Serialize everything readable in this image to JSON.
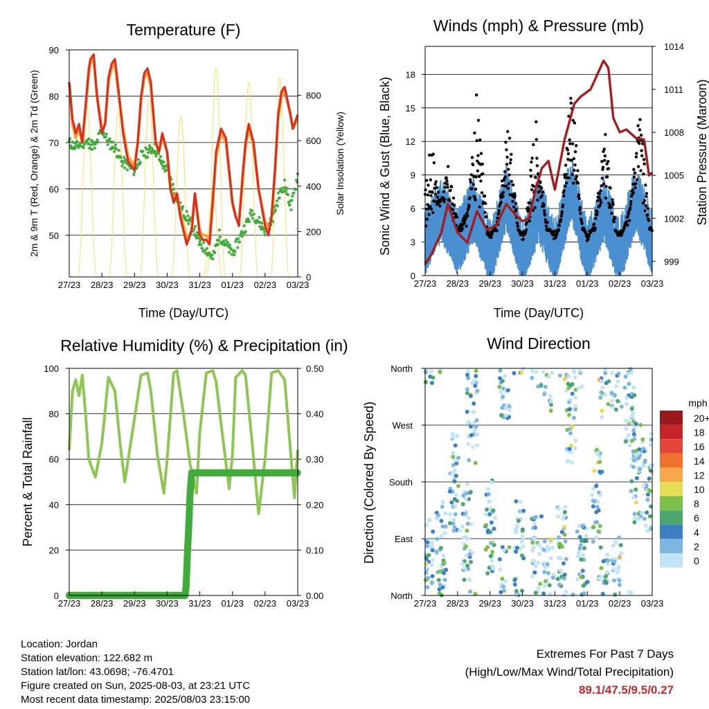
{
  "chart_data": [
    {
      "type": "line",
      "title": "Temperature (F)",
      "xlabel": "Time (Day/UTC)",
      "ylabel": "2m & 9m T (Red, Orange) & 2m Td (Green)",
      "y2label": "Solar Insolation (Yellow)",
      "x_ticks": [
        "27/23",
        "28/23",
        "29/23",
        "30/23",
        "31/23",
        "01/23",
        "02/23",
        "03/23"
      ],
      "ylim": [
        41,
        90
      ],
      "y_ticks": [
        50,
        60,
        70,
        80,
        90
      ],
      "y2lim": [
        0,
        1000
      ],
      "y2_ticks": [
        0,
        200,
        400,
        600,
        800
      ],
      "grid": true,
      "series": [
        {
          "name": "2m T",
          "color": "#d7301f",
          "x": [
            0,
            0.1,
            0.2,
            0.3,
            0.4,
            0.5,
            0.6,
            0.65,
            0.75,
            0.85,
            1,
            1.1,
            1.2,
            1.3,
            1.4,
            1.5,
            1.65,
            1.8,
            1.9,
            2,
            2.1,
            2.2,
            2.3,
            2.4,
            2.5,
            2.65,
            2.75,
            2.85,
            3,
            3.1,
            3.2,
            3.3,
            3.4,
            3.6,
            3.75,
            3.85,
            4,
            4.1,
            4.2,
            4.3,
            4.4,
            4.5,
            4.65,
            4.8,
            5,
            5.1,
            5.2,
            5.3,
            5.4,
            5.5,
            5.65,
            5.8,
            6,
            6.1,
            6.2,
            6.3,
            6.4,
            6.5,
            6.6,
            6.75,
            6.85,
            7
          ],
          "values": [
            83,
            75,
            72,
            74,
            70,
            78,
            86,
            88,
            89,
            80,
            72,
            74,
            84,
            87,
            88,
            82,
            72,
            66,
            65,
            64,
            70,
            80,
            85,
            86,
            83,
            70,
            68,
            72,
            68,
            60,
            57,
            59,
            54,
            48,
            51,
            59,
            50,
            49,
            49,
            48,
            58,
            68,
            73,
            71,
            57,
            54,
            52,
            62,
            70,
            74,
            70,
            60,
            52,
            50,
            54,
            64,
            76,
            81,
            82,
            77,
            73,
            76
          ]
        },
        {
          "name": "9m T",
          "color": "#f6a33b",
          "x": [
            0,
            0.1,
            0.2,
            0.3,
            0.4,
            0.5,
            0.6,
            0.65,
            0.75,
            0.85,
            1,
            1.1,
            1.2,
            1.3,
            1.4,
            1.5,
            1.65,
            1.8,
            1.9,
            2,
            2.1,
            2.2,
            2.3,
            2.4,
            2.5,
            2.65,
            2.75,
            2.85,
            3,
            3.1,
            3.2,
            3.3,
            3.4,
            3.6,
            3.75,
            3.85,
            4,
            4.1,
            4.2,
            4.3,
            4.4,
            4.5,
            4.65,
            4.8,
            5,
            5.1,
            5.2,
            5.3,
            5.4,
            5.5,
            5.65,
            5.8,
            6,
            6.1,
            6.2,
            6.3,
            6.4,
            6.5,
            6.6,
            6.75,
            6.85,
            7
          ],
          "values": [
            83,
            74,
            71,
            73,
            70,
            77,
            85,
            87,
            88,
            80,
            73,
            74,
            83,
            86,
            87,
            81,
            73,
            67,
            66,
            65,
            70,
            79,
            84,
            85,
            82,
            70,
            68,
            71,
            68,
            60,
            58,
            59,
            55,
            49,
            51,
            59,
            51,
            50,
            50,
            49,
            57,
            67,
            72,
            70,
            57,
            54,
            53,
            61,
            69,
            73,
            69,
            60,
            53,
            51,
            54,
            63,
            75,
            80,
            81,
            77,
            73,
            75
          ]
        },
        {
          "name": "2m Td",
          "color": "#41ab3c",
          "x": [
            0,
            0.2,
            0.4,
            0.6,
            0.8,
            1,
            1.2,
            1.4,
            1.6,
            1.8,
            2,
            2.2,
            2.4,
            2.6,
            2.8,
            3,
            3.2,
            3.4,
            3.6,
            3.8,
            4,
            4.2,
            4.4,
            4.6,
            4.8,
            5,
            5.2,
            5.4,
            5.6,
            5.8,
            6,
            6.2,
            6.4,
            6.6,
            6.8,
            7
          ],
          "values": [
            70,
            69,
            70,
            70,
            69,
            73,
            70,
            69,
            66,
            65,
            64,
            67,
            68,
            69,
            66,
            64,
            60,
            56,
            54,
            52,
            48,
            47,
            45,
            50,
            48,
            46,
            49,
            52,
            55,
            53,
            51,
            53,
            58,
            61,
            56,
            63
          ]
        },
        {
          "name": "Solar Insolation",
          "color": "#f5e06a",
          "axis": "y2",
          "peaks_x": [
            0.55,
            1.5,
            2.45,
            3.42,
            4.4,
            4.5,
            5.5,
            6.45
          ],
          "peaks": [
            750,
            730,
            780,
            710,
            380,
            920,
            860,
            880
          ]
        }
      ]
    },
    {
      "type": "scatter",
      "title": "Winds (mph) & Pressure (mb)",
      "xlabel": "Time (Day/UTC)",
      "ylabel": "Sonic Wind & Gust (Blue, Black)",
      "y2label": "Station Pressure (Maroon)",
      "x_ticks": [
        "27/23",
        "28/23",
        "29/23",
        "30/23",
        "31/23",
        "01/23",
        "02/23",
        "03/23"
      ],
      "ylim": [
        0,
        20.5
      ],
      "y_ticks": [
        0,
        3,
        6,
        9,
        12,
        15,
        18
      ],
      "y2lim": [
        998,
        1014
      ],
      "y2_ticks": [
        999,
        1002,
        1005,
        1008,
        1011,
        1014
      ],
      "grid": true,
      "series": [
        {
          "name": "Sonic Wind",
          "color": "#4a90d0",
          "x": [
            0,
            0.5,
            1,
            1.5,
            2,
            2.5,
            3,
            3.5,
            4,
            4.5,
            5,
            5.5,
            6,
            6.5,
            7
          ],
          "values": [
            3,
            6,
            3,
            6,
            2,
            7,
            2,
            6,
            2,
            8,
            2,
            6,
            2,
            7,
            3
          ]
        },
        {
          "name": "Gust",
          "color": "#000000",
          "peaks_x": [
            0.2,
            0.7,
            1.6,
            2.55,
            3.4,
            4.5,
            5.55,
            6.6
          ],
          "peaks": [
            12,
            9,
            16,
            13,
            14,
            18,
            12,
            15
          ]
        },
        {
          "name": "Station Pressure",
          "color": "#a11d21",
          "axis": "y2",
          "x": [
            0,
            0.2,
            0.5,
            0.7,
            1,
            1.3,
            1.6,
            1.9,
            2.2,
            2.5,
            2.8,
            3,
            3.2,
            3.4,
            3.6,
            3.8,
            4,
            4.3,
            4.6,
            4.8,
            5.1,
            5.3,
            5.5,
            5.65,
            5.8,
            6,
            6.2,
            6.5,
            6.75,
            6.9,
            7
          ],
          "values": [
            998.8,
            999.5,
            1001,
            1003,
            1001,
            1000.3,
            1002.5,
            1001.2,
            1001.5,
            1003,
            1002.2,
            1001.8,
            1002,
            1004,
            1005.5,
            1006,
            1004,
            1007.5,
            1010,
            1010.5,
            1011,
            1012,
            1013,
            1012.5,
            1009,
            1008,
            1008.2,
            1007.6,
            1007.5,
            1005,
            1005.2
          ]
        }
      ]
    },
    {
      "type": "line",
      "title": "Relative Humidity (%) & Precipitation (in)",
      "xlabel": "Time (Day/UTC)",
      "ylabel": "Percent & Total Rainfall",
      "x_ticks": [
        "27/23",
        "28/23",
        "29/23",
        "30/23",
        "31/23",
        "01/23",
        "02/23",
        "03/23"
      ],
      "ylim": [
        0,
        100
      ],
      "y_ticks": [
        0,
        20,
        40,
        60,
        80,
        100
      ],
      "y2lim": [
        0,
        0.5
      ],
      "y2_ticks": [
        "0.00",
        "0.10",
        "0.20",
        "0.30",
        "0.40",
        "0.50"
      ],
      "grid": true,
      "series": [
        {
          "name": "Relative Humidity",
          "color": "#8dc653",
          "x": [
            0,
            0.1,
            0.2,
            0.3,
            0.4,
            0.5,
            0.6,
            0.8,
            1,
            1.2,
            1.4,
            1.55,
            1.7,
            2,
            2.2,
            2.4,
            2.5,
            2.7,
            2.9,
            3,
            3.2,
            3.3,
            3.5,
            3.7,
            3.9,
            4,
            4.2,
            4.4,
            4.5,
            4.7,
            4.9,
            5,
            5.1,
            5.3,
            5.4,
            5.6,
            5.8,
            6,
            6.2,
            6.4,
            6.6,
            6.8,
            6.9,
            7
          ],
          "values": [
            64,
            90,
            95,
            88,
            97,
            80,
            60,
            52,
            67,
            96,
            90,
            68,
            50,
            78,
            97,
            98,
            90,
            62,
            45,
            60,
            98,
            99,
            80,
            58,
            45,
            72,
            98,
            99,
            94,
            70,
            47,
            62,
            96,
            99,
            97,
            68,
            36,
            60,
            98,
            99,
            95,
            60,
            43,
            64
          ]
        },
        {
          "name": "Total Rainfall",
          "color": "#41ab3c",
          "axis": "y2",
          "x": [
            0,
            3.55,
            3.58,
            3.62,
            3.66,
            3.7,
            3.75,
            7
          ],
          "values": [
            0,
            0,
            0.02,
            0.09,
            0.15,
            0.22,
            0.27,
            0.27
          ]
        }
      ]
    },
    {
      "type": "scatter",
      "title": "Wind Direction",
      "xlabel": "Time (Day/UTC)",
      "ylabel": "Direction (Colored By Speed)",
      "x_ticks": [
        "27/23",
        "28/23",
        "29/23",
        "30/23",
        "31/23",
        "01/23",
        "02/23",
        "03/23"
      ],
      "y_ticks": [
        "North",
        "East",
        "South",
        "West",
        "North"
      ],
      "grid": true,
      "colorbar": {
        "title": "mph",
        "labels": [
          "20+",
          "18",
          "16",
          "14",
          "12",
          "10",
          "8",
          "6",
          "4",
          "2",
          "0"
        ],
        "colors": [
          "#99191c",
          "#c6262b",
          "#e2453a",
          "#f0712d",
          "#f8a84a",
          "#e6dd57",
          "#7cbf4a",
          "#4aa66e",
          "#3d7fc0",
          "#7eb6e2",
          "#c1e4f7"
        ]
      }
    }
  ],
  "info": {
    "location": "Location: Jordan",
    "elevation": "Station elevation: 122.682 m",
    "latlon": "Station lat/lon: 43.0698; -76.4701",
    "created": "Figure created on Sun, 2025-08-03, at 23:21 UTC",
    "recent": "Most recent data timestamp: 2025/08/03 23:15:00"
  },
  "extremes": {
    "heading": "Extremes For Past 7 Days",
    "subheading": "(High/Low/Max Wind/Total Precipitation)",
    "values": "89.1/47.5/9.5/0.27"
  }
}
